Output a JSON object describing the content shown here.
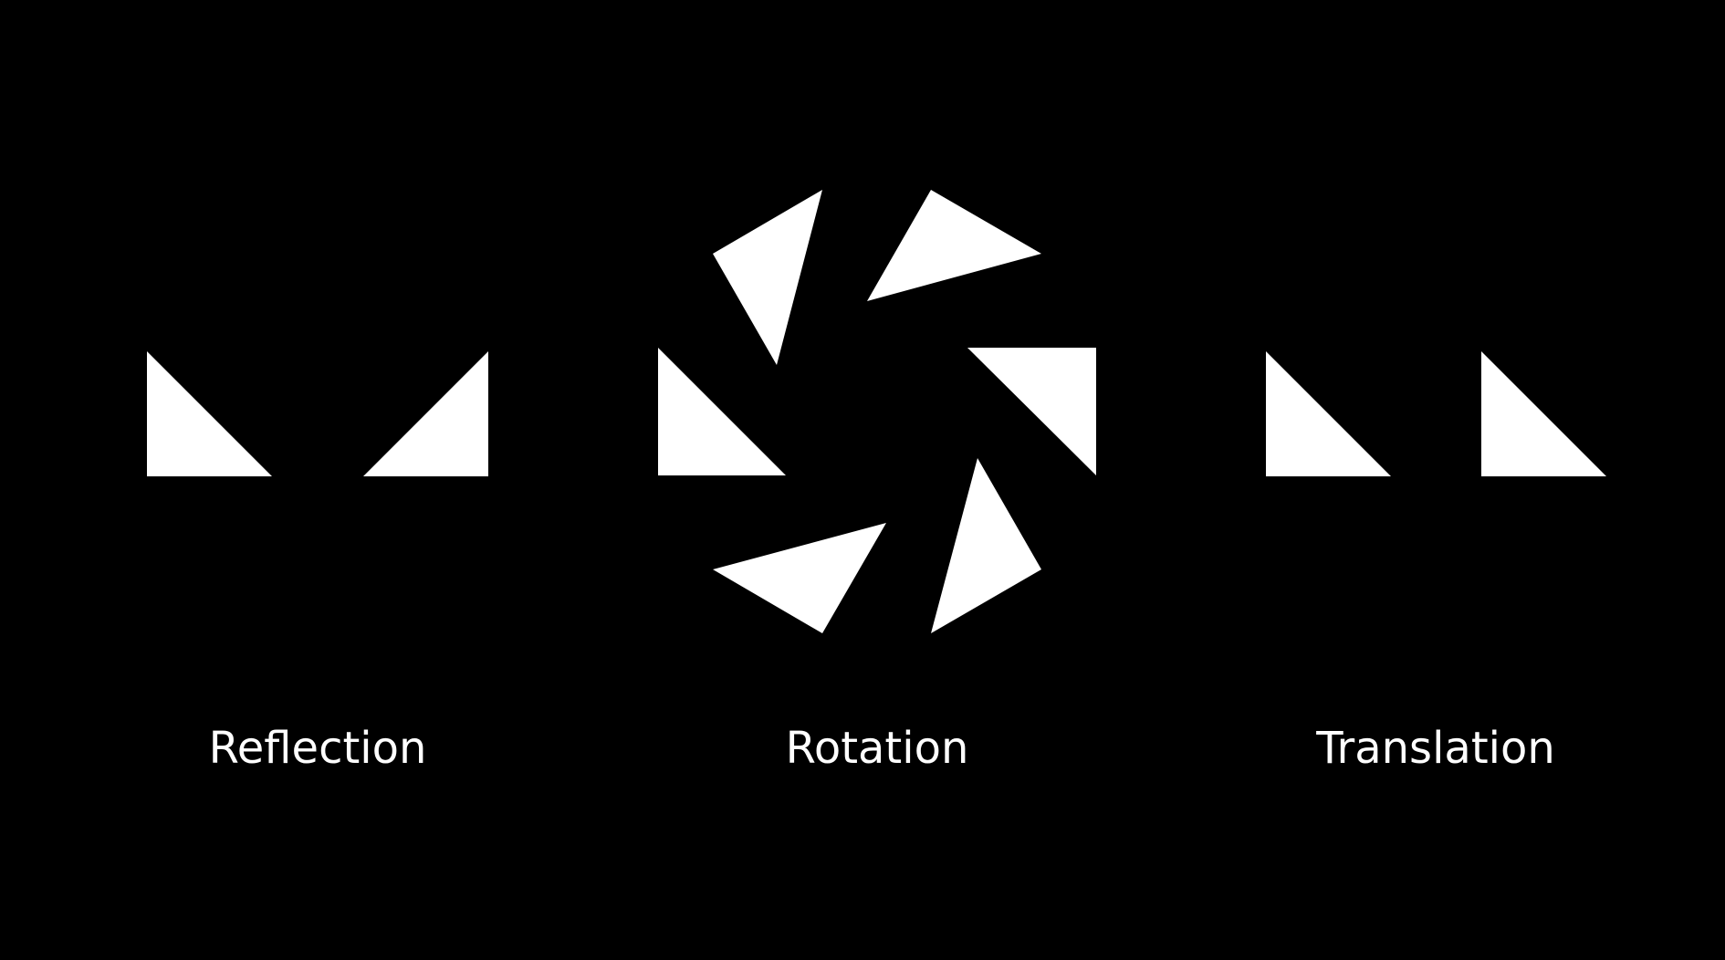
{
  "colors": {
    "background": "#000000",
    "shape_fill": "#ffffff",
    "text": "#ffffff"
  },
  "groups": [
    {
      "id": "reflection",
      "label": "Reflection"
    },
    {
      "id": "rotation",
      "label": "Rotation"
    },
    {
      "id": "translation",
      "label": "Translation"
    }
  ]
}
